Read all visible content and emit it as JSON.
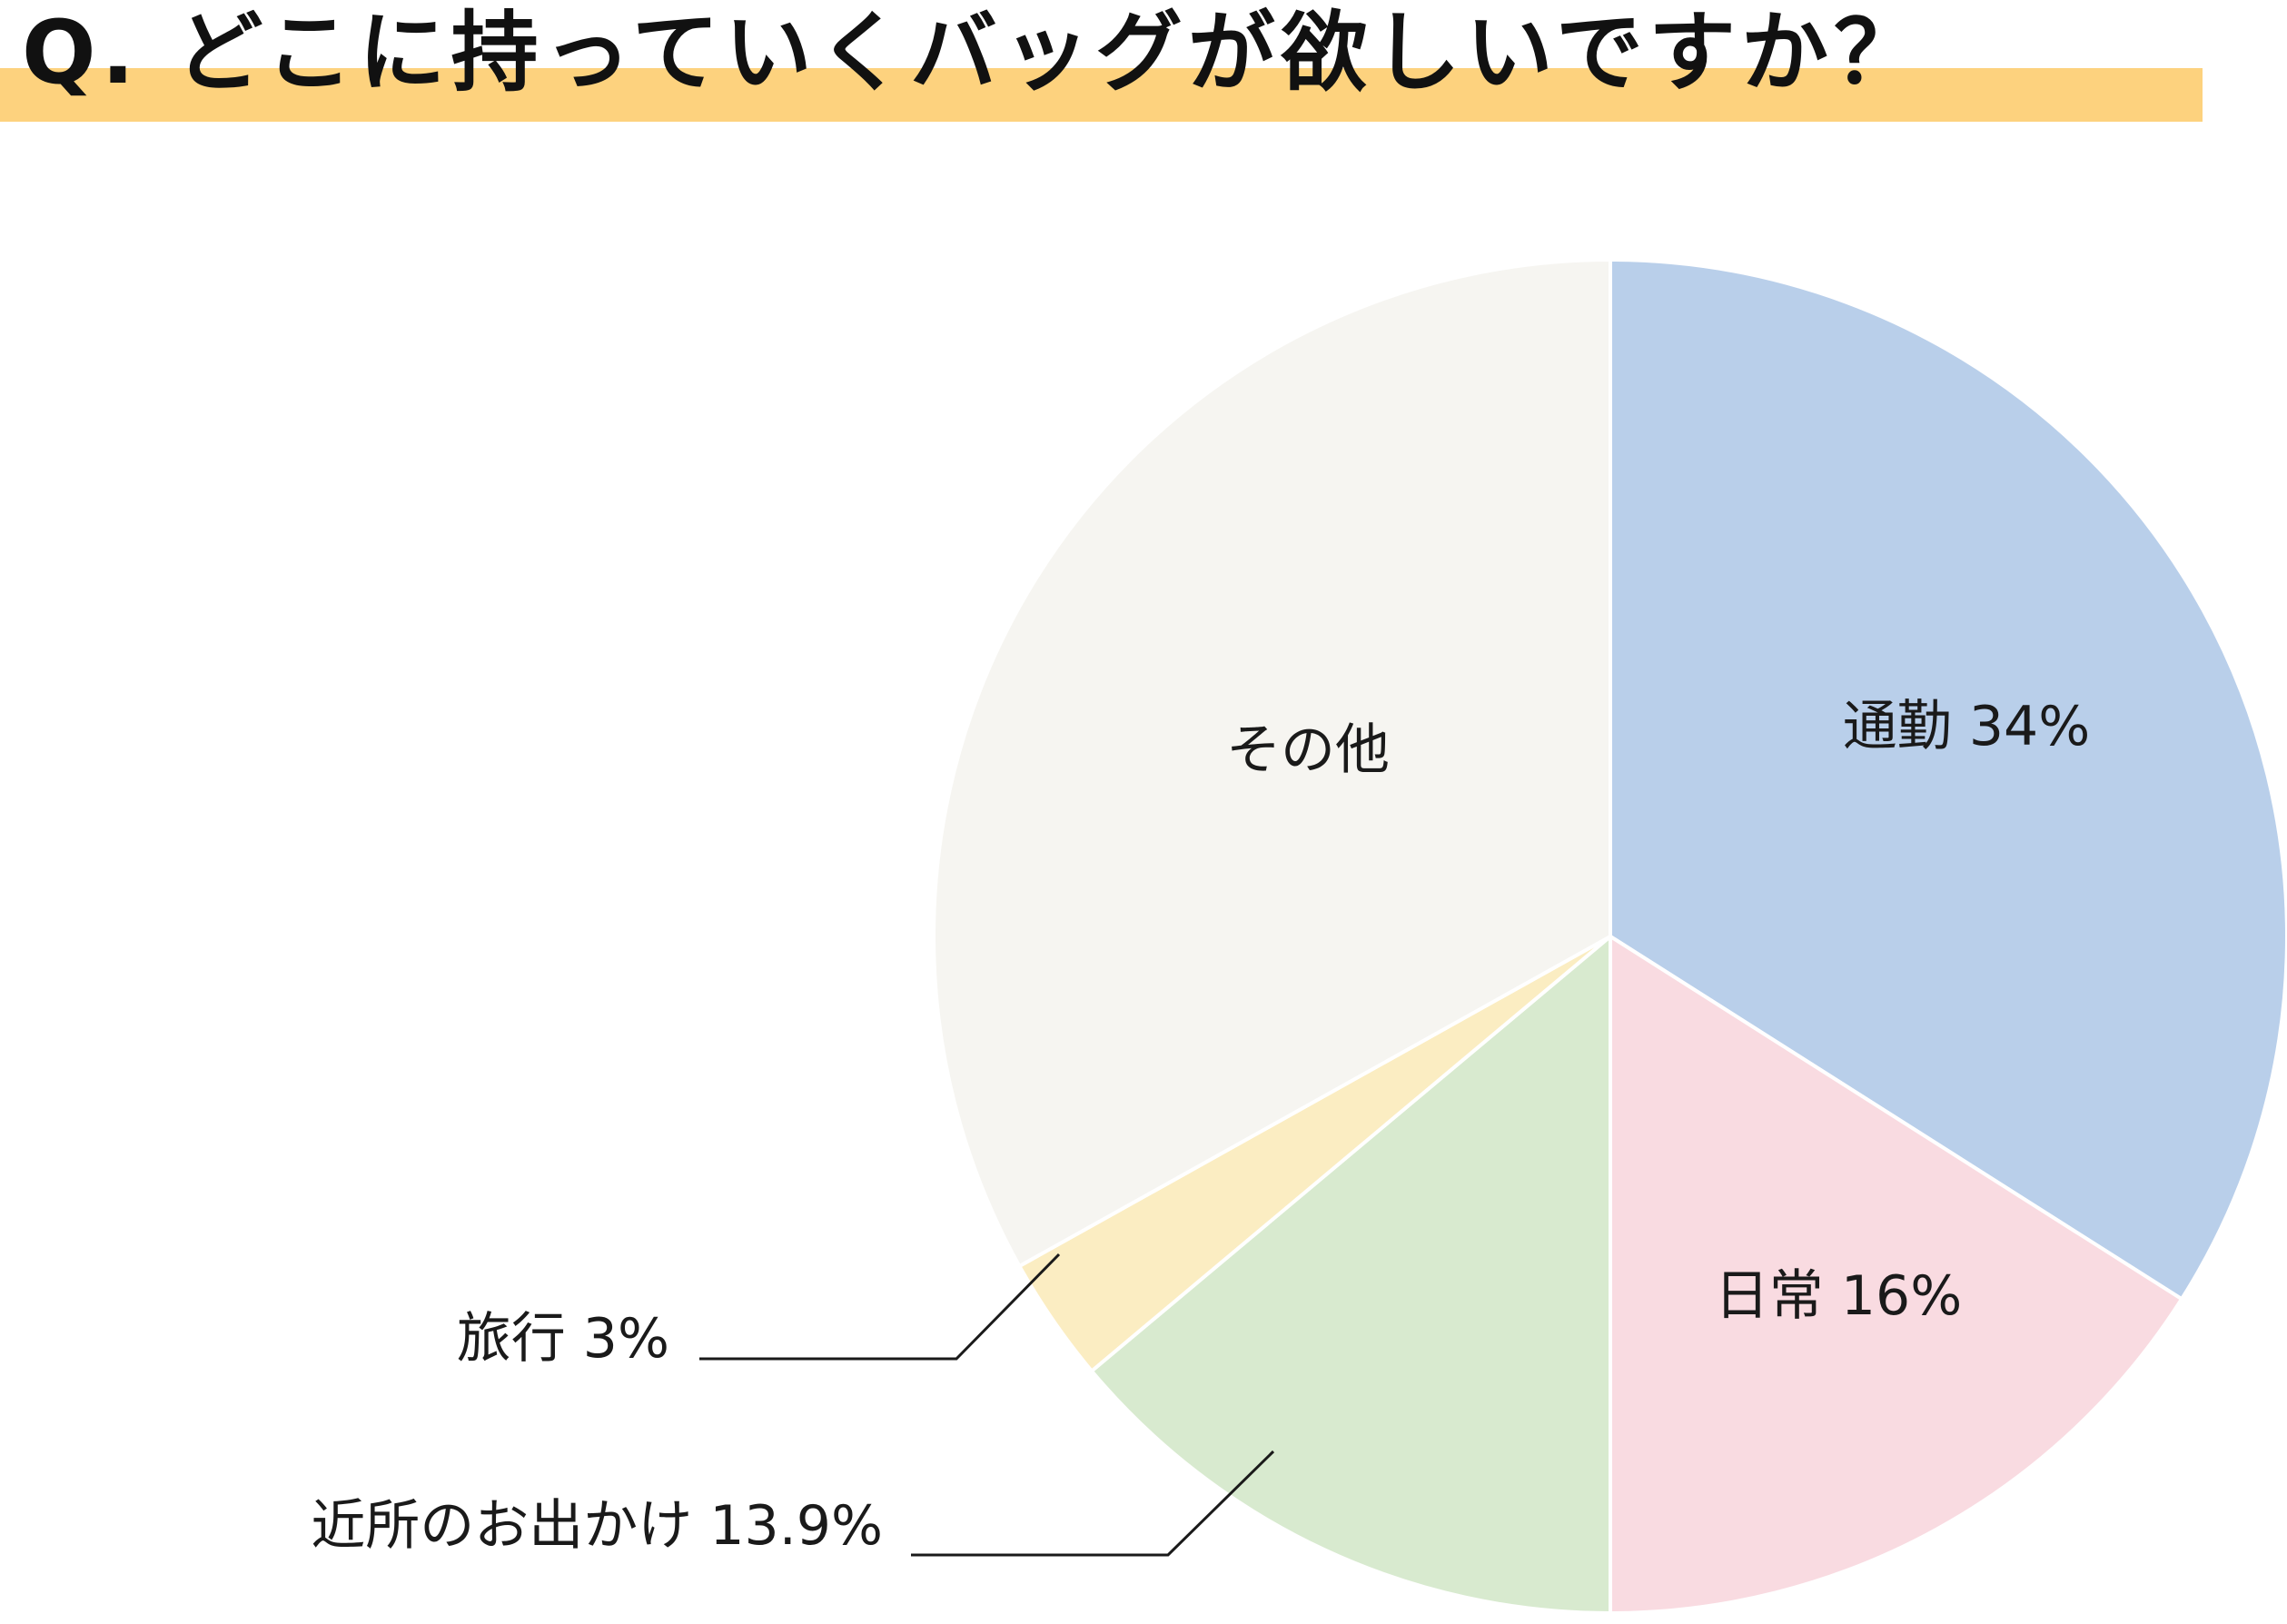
{
  "title": "Q. どこに持っていくバッグが欲しいですか？",
  "chart_data": {
    "type": "pie",
    "start_angle_deg": 0,
    "direction": "clockwise",
    "slices": [
      {
        "label": "通勤 34%",
        "name": "通勤",
        "value": 34,
        "color": "#b9cfea"
      },
      {
        "label": "日常 16%",
        "name": "日常",
        "value": 16,
        "color": "#f9dbe1"
      },
      {
        "label": "近所のお出かけ 13.9%",
        "name": "近所のお出かけ",
        "value": 13.9,
        "color": "#d8eacf"
      },
      {
        "label": "旅行 3%",
        "name": "旅行",
        "value": 3,
        "color": "#fbedc2"
      },
      {
        "label": "その他",
        "name": "その他",
        "value": 33.1,
        "color": "#f6f5f1"
      }
    ]
  }
}
